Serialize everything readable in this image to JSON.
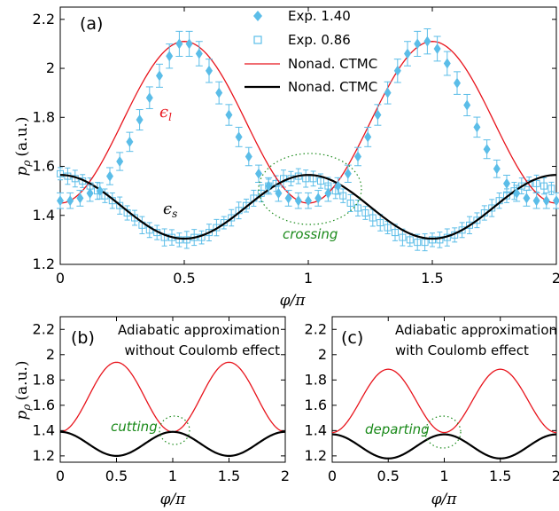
{
  "colors": {
    "exp140": "#5bbde8",
    "exp086": "#5bbde8",
    "red": "#e8141c",
    "black": "#000000",
    "annotation": "#1a8a1a"
  },
  "chart_data": [
    {
      "panel": "(a)",
      "type": "line",
      "xlabel": "φ/π",
      "ylabel": "pρ (a.u.)",
      "xlim": [
        0,
        2
      ],
      "ylim": [
        1.2,
        2.25
      ],
      "xticks": [
        "0",
        "0.5",
        "1",
        "1.5",
        "2"
      ],
      "yticks": [
        "1.2",
        "1.4",
        "1.6",
        "1.8",
        "2",
        "2.2"
      ],
      "legend_position": "top-right",
      "series": [
        {
          "name": "Exp. 1.40",
          "style": "diamond",
          "x": [
            0,
            0.04,
            0.08,
            0.12,
            0.16,
            0.2,
            0.24,
            0.28,
            0.32,
            0.36,
            0.4,
            0.44,
            0.48,
            0.52,
            0.56,
            0.6,
            0.64,
            0.68,
            0.72,
            0.76,
            0.8,
            0.84,
            0.88,
            0.92,
            0.96,
            1,
            1.04,
            1.08,
            1.12,
            1.16,
            1.2,
            1.24,
            1.28,
            1.32,
            1.36,
            1.4,
            1.44,
            1.48,
            1.52,
            1.56,
            1.6,
            1.64,
            1.68,
            1.72,
            1.76,
            1.8,
            1.84,
            1.88,
            1.92,
            1.96,
            2
          ],
          "values": [
            1.46,
            1.46,
            1.47,
            1.49,
            1.5,
            1.56,
            1.62,
            1.7,
            1.79,
            1.88,
            1.97,
            2.05,
            2.1,
            2.1,
            2.06,
            1.99,
            1.9,
            1.81,
            1.72,
            1.64,
            1.57,
            1.52,
            1.49,
            1.47,
            1.46,
            1.46,
            1.47,
            1.49,
            1.52,
            1.57,
            1.64,
            1.72,
            1.81,
            1.9,
            1.99,
            2.06,
            2.1,
            2.11,
            2.08,
            2.02,
            1.94,
            1.85,
            1.76,
            1.67,
            1.59,
            1.53,
            1.49,
            1.47,
            1.46,
            1.46,
            1.46
          ]
        },
        {
          "name": "Exp. 0.86",
          "style": "square-errorbar",
          "x": [
            0,
            0.03,
            0.06,
            0.09,
            0.12,
            0.15,
            0.18,
            0.21,
            0.24,
            0.27,
            0.3,
            0.33,
            0.36,
            0.39,
            0.42,
            0.45,
            0.48,
            0.51,
            0.54,
            0.57,
            0.6,
            0.63,
            0.66,
            0.69,
            0.72,
            0.75,
            0.78,
            0.81,
            0.84,
            0.87,
            0.9,
            0.93,
            0.96,
            0.99,
            1.02,
            1.05,
            1.08,
            1.11,
            1.14,
            1.17,
            1.2,
            1.23,
            1.26,
            1.29,
            1.32,
            1.35,
            1.38,
            1.41,
            1.44,
            1.47,
            1.5,
            1.53,
            1.56,
            1.59,
            1.62,
            1.65,
            1.68,
            1.71,
            1.74,
            1.77,
            1.8,
            1.83,
            1.86,
            1.89,
            1.92,
            1.95,
            1.98
          ],
          "values": [
            1.57,
            1.56,
            1.55,
            1.54,
            1.52,
            1.5,
            1.48,
            1.46,
            1.44,
            1.41,
            1.39,
            1.36,
            1.34,
            1.33,
            1.31,
            1.31,
            1.3,
            1.3,
            1.31,
            1.31,
            1.33,
            1.35,
            1.37,
            1.39,
            1.42,
            1.44,
            1.47,
            1.49,
            1.52,
            1.53,
            1.55,
            1.55,
            1.56,
            1.55,
            1.55,
            1.54,
            1.52,
            1.5,
            1.48,
            1.45,
            1.43,
            1.41,
            1.39,
            1.37,
            1.35,
            1.33,
            1.31,
            1.3,
            1.29,
            1.29,
            1.3,
            1.3,
            1.31,
            1.32,
            1.34,
            1.36,
            1.38,
            1.41,
            1.43,
            1.46,
            1.48,
            1.5,
            1.52,
            1.53,
            1.53,
            1.52,
            1.51
          ]
        },
        {
          "name": "Nonad. CTMC",
          "style": "red-line",
          "function": "1.78 - 0.33*cos(2*pi*x)"
        },
        {
          "name": "Nonad. CTMC",
          "style": "black-line",
          "function": "1.435 + 0.13*cos(2*pi*x)"
        }
      ],
      "annotations": {
        "upper": "ϵ_l",
        "lower": "ϵ_s",
        "region": "crossing"
      }
    },
    {
      "panel": "(b)",
      "type": "line",
      "xlabel": "φ/π",
      "ylabel": "pρ (a.u.)",
      "xlim": [
        0,
        2
      ],
      "ylim": [
        1.15,
        2.3
      ],
      "xticks": [
        "0",
        "0.5",
        "1",
        "1.5",
        "2"
      ],
      "yticks": [
        "1.2",
        "1.4",
        "1.6",
        "1.8",
        "2",
        "2.2"
      ],
      "note_lines": [
        "Adiabatic approximation",
        "without Coulomb effect"
      ],
      "series": [
        {
          "style": "red-line",
          "function": "1.665 - 0.275*cos(2*pi*x)"
        },
        {
          "style": "black-line",
          "function": "1.295 + 0.095*cos(2*pi*x)"
        }
      ],
      "annotation": "cutting"
    },
    {
      "panel": "(c)",
      "type": "line",
      "xlabel": "φ/π",
      "ylabel": "",
      "xlim": [
        0,
        2
      ],
      "ylim": [
        1.15,
        2.3
      ],
      "xticks": [
        "0",
        "0.5",
        "1",
        "1.5",
        "2"
      ],
      "yticks": [
        "1.2",
        "1.4",
        "1.6",
        "1.8",
        "2",
        "2.2"
      ],
      "note_lines": [
        "Adiabatic approximation",
        "with Coulomb effect"
      ],
      "series": [
        {
          "style": "red-line",
          "function": "1.635 - 0.25*cos(2*pi*x)"
        },
        {
          "style": "black-line",
          "function": "1.275 + 0.095*cos(2*pi*x)"
        }
      ],
      "annotation": "departing"
    }
  ],
  "labels": {
    "a_tag": "(a)",
    "b_tag": "(b)",
    "c_tag": "(c)",
    "leg1": "Exp. 1.40",
    "leg2": "Exp. 0.86",
    "leg3": "Nonad. CTMC",
    "leg4": "Nonad. CTMC",
    "xaxis": "φ/π",
    "yaxis_sym": "p",
    "yaxis_sub": "ρ",
    "yaxis_unit": "(a.u.)",
    "eps_l": "ϵ",
    "eps_l_sub": "l",
    "eps_s": "ϵ",
    "eps_s_sub": "s",
    "crossing": "crossing",
    "cutting": "cutting",
    "departing": "departing",
    "b_note1": "Adiabatic approximation",
    "b_note2": "without Coulomb effect",
    "c_note1": "Adiabatic approximation",
    "c_note2": "with Coulomb effect"
  },
  "ticks": {
    "x": [
      "0",
      "0.5",
      "1",
      "1.5",
      "2"
    ],
    "a_y": [
      "1.2",
      "1.4",
      "1.6",
      "1.8",
      "2",
      "2.2"
    ],
    "bc_y": [
      "1.2",
      "1.4",
      "1.6",
      "1.8",
      "2",
      "2.2"
    ]
  }
}
